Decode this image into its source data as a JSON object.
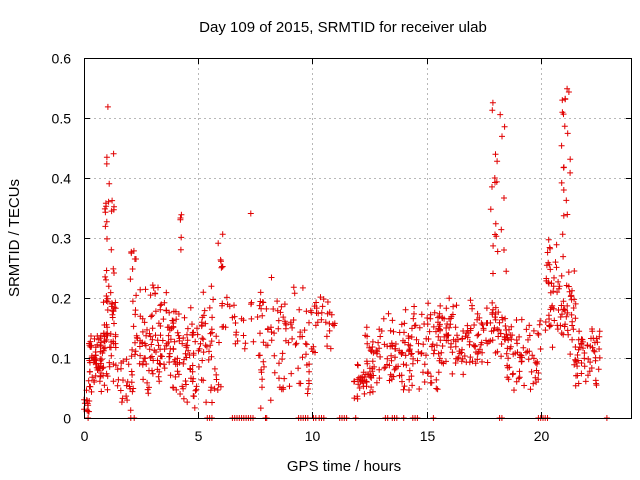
{
  "chart_data": {
    "type": "scatter",
    "title": "Day 109 of 2015, SRMTID for receiver ulab",
    "xlabel": "GPS time / hours",
    "ylabel": "SRMTID / TECUs",
    "xlim": [
      0,
      24
    ],
    "ylim": [
      0,
      0.6
    ],
    "xticks": [
      0,
      5,
      10,
      15,
      20
    ],
    "xtick_labels": [
      "0",
      "5",
      "10",
      "15",
      "20"
    ],
    "yticks": [
      0,
      0.1,
      0.2,
      0.3,
      0.4,
      0.5,
      0.6
    ],
    "ytick_labels": [
      "0",
      "0.1",
      "0.2",
      "0.3",
      "0.4",
      "0.5",
      "0.6"
    ],
    "grid": true,
    "marker": "+",
    "color": "#e00000",
    "series_name": "SRMTID",
    "envelope": [
      {
        "t0": 0.0,
        "t1": 0.25,
        "lo": 0.0,
        "hi": 0.05,
        "n": 12
      },
      {
        "t0": 0.2,
        "t1": 0.9,
        "lo": 0.04,
        "hi": 0.15,
        "n": 70
      },
      {
        "t0": 0.85,
        "t1": 1.4,
        "lo": 0.02,
        "hi": 0.24,
        "n": 50
      },
      {
        "t0": 1.4,
        "t1": 2.2,
        "lo": 0.0,
        "hi": 0.12,
        "n": 25
      },
      {
        "t0": 2.1,
        "t1": 3.4,
        "lo": 0.02,
        "hi": 0.23,
        "n": 80
      },
      {
        "t0": 3.4,
        "t1": 4.2,
        "lo": 0.04,
        "hi": 0.22,
        "n": 45
      },
      {
        "t0": 4.0,
        "t1": 5.0,
        "lo": 0.0,
        "hi": 0.2,
        "n": 55
      },
      {
        "t0": 5.0,
        "t1": 6.0,
        "lo": 0.0,
        "hi": 0.24,
        "n": 45
      },
      {
        "t0": 6.0,
        "t1": 7.5,
        "lo": 0.1,
        "hi": 0.21,
        "n": 25
      },
      {
        "t0": 7.6,
        "t1": 8.9,
        "lo": 0.0,
        "hi": 0.25,
        "n": 55
      },
      {
        "t0": 8.9,
        "t1": 10.2,
        "lo": 0.03,
        "hi": 0.23,
        "n": 45
      },
      {
        "t0": 10.2,
        "t1": 11.0,
        "lo": 0.1,
        "hi": 0.22,
        "n": 20
      },
      {
        "t0": 11.8,
        "t1": 12.7,
        "lo": 0.01,
        "hi": 0.12,
        "n": 35
      },
      {
        "t0": 12.3,
        "t1": 14.0,
        "lo": 0.04,
        "hi": 0.18,
        "n": 70
      },
      {
        "t0": 13.8,
        "t1": 15.6,
        "lo": 0.03,
        "hi": 0.21,
        "n": 80
      },
      {
        "t0": 15.5,
        "t1": 17.5,
        "lo": 0.06,
        "hi": 0.21,
        "n": 100
      },
      {
        "t0": 17.4,
        "t1": 18.5,
        "lo": 0.08,
        "hi": 0.21,
        "n": 45
      },
      {
        "t0": 18.5,
        "t1": 20.0,
        "lo": 0.03,
        "hi": 0.18,
        "n": 70
      },
      {
        "t0": 20.2,
        "t1": 21.6,
        "lo": 0.08,
        "hi": 0.28,
        "n": 70
      },
      {
        "t0": 21.5,
        "t1": 22.6,
        "lo": 0.04,
        "hi": 0.17,
        "n": 55
      }
    ],
    "spikes": [
      {
        "t0": 0.9,
        "t1": 1.35,
        "lo": 0.2,
        "hi": 0.45,
        "n": 22
      },
      {
        "t0": 1.0,
        "t1": 1.05,
        "lo": 0.51,
        "hi": 0.52,
        "n": 1
      },
      {
        "t0": 1.95,
        "t1": 2.3,
        "lo": 0.22,
        "hi": 0.29,
        "n": 7
      },
      {
        "t0": 4.1,
        "t1": 4.3,
        "lo": 0.28,
        "hi": 0.34,
        "n": 5
      },
      {
        "t0": 5.8,
        "t1": 6.1,
        "lo": 0.25,
        "hi": 0.31,
        "n": 7
      },
      {
        "t0": 7.3,
        "t1": 7.4,
        "lo": 0.34,
        "hi": 0.35,
        "n": 1
      },
      {
        "t0": 17.8,
        "t1": 18.5,
        "lo": 0.23,
        "hi": 0.53,
        "n": 22
      },
      {
        "t0": 20.3,
        "t1": 20.7,
        "lo": 0.22,
        "hi": 0.31,
        "n": 9
      },
      {
        "t0": 20.9,
        "t1": 21.3,
        "lo": 0.26,
        "hi": 0.55,
        "n": 20
      }
    ],
    "baseline_points": [
      0.18,
      2.05,
      2.2,
      5.4,
      5.5,
      5.6,
      6.5,
      6.6,
      6.7,
      6.8,
      6.9,
      7.0,
      7.1,
      7.2,
      7.3,
      7.4,
      7.95,
      8.0,
      9.4,
      9.5,
      9.6,
      9.7,
      9.8,
      10.05,
      10.15,
      10.3,
      10.4,
      10.5,
      11.2,
      11.3,
      11.4,
      11.5,
      11.9,
      13.2,
      13.3,
      13.5,
      13.6,
      13.7,
      14.0,
      14.4,
      14.5,
      14.6,
      15.3,
      18.2,
      18.3,
      19.9,
      20.0,
      20.1,
      20.2,
      20.3,
      22.9
    ]
  }
}
